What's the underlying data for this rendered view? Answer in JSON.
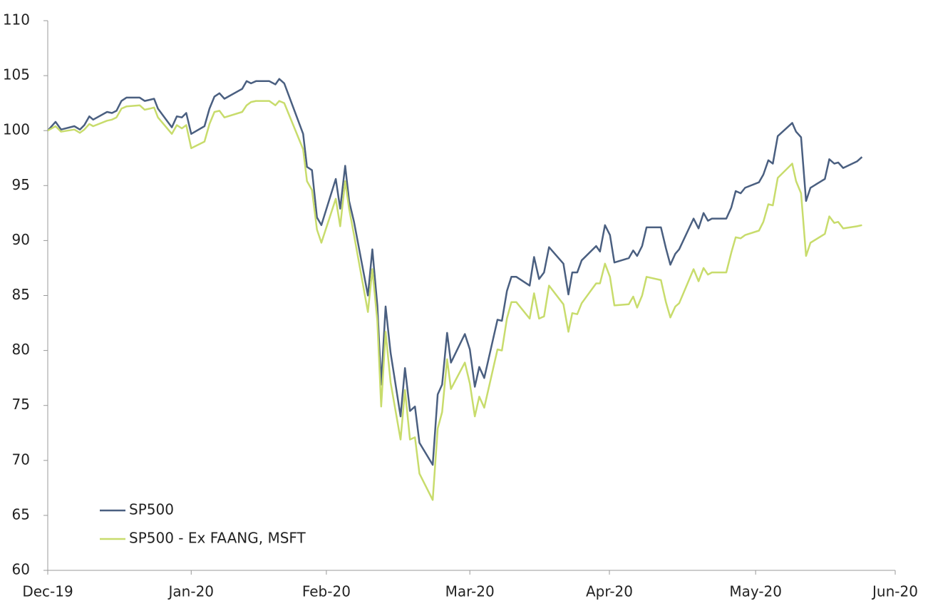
{
  "chart_data": {
    "type": "line",
    "x": [
      0,
      1.4,
      2.4,
      4.8,
      5.8,
      6.6,
      7.5,
      8.2,
      10.7,
      11.6,
      12.4,
      13.3,
      14.2,
      16.6,
      17.5,
      18.4,
      19.2,
      19.9,
      22.4,
      23.3,
      24.2,
      25.0,
      25.9,
      28.3,
      29.2,
      30.1,
      31.0,
      31.9,
      35.1,
      35.9,
      36.7,
      37.6,
      40.0,
      41.1,
      41.8,
      42.7,
      46.1,
      46.8,
      47.7,
      48.6,
      49.4,
      52.0,
      52.8,
      53.7,
      54.4,
      55.3,
      57.8,
      58.6,
      59.5,
      60.2,
      61.0,
      61.9,
      63.7,
      64.5,
      65.4,
      66.3,
      67.1,
      69.5,
      70.4,
      71.2,
      72.1,
      72.8,
      75.3,
      76.2,
      77.1,
      77.9,
      78.8,
      81.2,
      82.0,
      82.9,
      83.7,
      84.6,
      87.0,
      87.8,
      88.7,
      89.6,
      90.5,
      93.1,
      94.0,
      94.7,
      95.6,
      96.4,
      99.0,
      99.7,
      100.6,
      101.5,
      102.3,
      104.9,
      105.7,
      106.4,
      107.3,
      108.1,
      110.7,
      111.6,
      112.4,
      113.3,
      114.0,
      116.6,
      117.5,
      118.4,
      119.2,
      119.9,
      122.5,
      123.4,
      124.2,
      125.1,
      125.9,
      128.4,
      129.2,
      130.1,
      130.9,
      131.8,
      134.4,
      135.1,
      136.0,
      136.9,
      137.7,
      140.3,
      141.1,
      142.0,
      142.7,
      143.6,
      146.1,
      147.0
    ],
    "series": [
      {
        "name": "SP500",
        "color": "#4a5f80",
        "values": [
          100,
          100.8,
          100.1,
          100.4,
          100.1,
          100.5,
          101.3,
          101.0,
          101.7,
          101.6,
          101.8,
          102.7,
          103.0,
          103.0,
          102.7,
          102.8,
          102.9,
          102.0,
          100.3,
          101.3,
          101.2,
          101.6,
          99.7,
          100.4,
          102.0,
          103.1,
          103.4,
          102.9,
          103.8,
          104.5,
          104.3,
          104.5,
          104.5,
          104.2,
          104.7,
          104.3,
          99.7,
          96.7,
          96.4,
          92.1,
          91.4,
          95.6,
          92.9,
          96.8,
          93.6,
          91.7,
          85.0,
          89.2,
          84.1,
          76.9,
          84.0,
          79.8,
          74.0,
          78.4,
          74.5,
          74.9,
          71.6,
          69.6,
          76.0,
          76.9,
          81.6,
          78.9,
          81.5,
          80.1,
          76.7,
          78.5,
          77.5,
          82.8,
          82.7,
          85.4,
          86.7,
          86.7,
          85.9,
          88.5,
          86.5,
          87.1,
          89.4,
          87.9,
          85.1,
          87.1,
          87.1,
          88.2,
          89.5,
          89.0,
          91.4,
          90.5,
          88.0,
          88.4,
          89.1,
          88.6,
          89.5,
          91.2,
          91.2,
          89.3,
          87.8,
          88.8,
          89.2,
          92.0,
          91.1,
          92.5,
          91.8,
          92.0,
          92.0,
          93.0,
          94.5,
          94.3,
          94.8,
          95.3,
          96.0,
          97.3,
          97.0,
          99.5,
          100.7,
          99.9,
          99.4,
          93.6,
          94.8,
          95.6,
          97.4,
          97.0,
          97.1,
          96.6,
          97.2,
          97.6
        ]
      },
      {
        "name": "SP500 - Ex FAANG, MSFT",
        "color": "#c8dc6c",
        "values": [
          100,
          100.4,
          99.9,
          100.1,
          99.8,
          100.1,
          100.6,
          100.4,
          100.9,
          101.0,
          101.2,
          102.0,
          102.2,
          102.3,
          101.9,
          102.0,
          102.1,
          101.2,
          99.7,
          100.5,
          100.2,
          100.5,
          98.4,
          99.0,
          100.6,
          101.7,
          101.8,
          101.2,
          101.7,
          102.3,
          102.6,
          102.7,
          102.7,
          102.3,
          102.7,
          102.5,
          98.3,
          95.4,
          94.6,
          91.0,
          89.8,
          93.8,
          91.3,
          95.4,
          92.9,
          90.5,
          83.5,
          87.4,
          82.7,
          74.9,
          81.7,
          77.1,
          71.9,
          76.4,
          71.9,
          72.1,
          68.8,
          66.4,
          72.9,
          74.4,
          79.2,
          76.5,
          78.9,
          77.0,
          74.0,
          75.8,
          74.8,
          80.1,
          80.0,
          82.9,
          84.4,
          84.4,
          82.9,
          85.2,
          82.9,
          83.1,
          85.9,
          84.2,
          81.7,
          83.4,
          83.3,
          84.3,
          86.1,
          86.1,
          87.9,
          86.7,
          84.1,
          84.2,
          84.9,
          83.9,
          85.0,
          86.7,
          86.4,
          84.4,
          83.0,
          84.0,
          84.3,
          87.4,
          86.3,
          87.5,
          86.9,
          87.1,
          87.1,
          88.9,
          90.3,
          90.2,
          90.5,
          90.9,
          91.7,
          93.3,
          93.2,
          95.7,
          97.0,
          95.4,
          94.3,
          88.6,
          89.8,
          90.6,
          92.2,
          91.6,
          91.7,
          91.1,
          91.3,
          91.4
        ]
      }
    ],
    "xlim": [
      0,
      153
    ],
    "xticks": [
      {
        "value": 0,
        "label": "Dec-19"
      },
      {
        "value": 25.9,
        "label": "Jan-20"
      },
      {
        "value": 50.3,
        "label": "Feb-20"
      },
      {
        "value": 76.2,
        "label": "Mar-20"
      },
      {
        "value": 101.4,
        "label": "Apr-20"
      },
      {
        "value": 127.8,
        "label": "May-20"
      },
      {
        "value": 153,
        "label": "Jun-20"
      }
    ],
    "ylim": [
      60,
      110
    ],
    "yticks": [
      60,
      65,
      70,
      75,
      80,
      85,
      90,
      95,
      100,
      105,
      110
    ],
    "grid": false,
    "legend": "lower left"
  }
}
